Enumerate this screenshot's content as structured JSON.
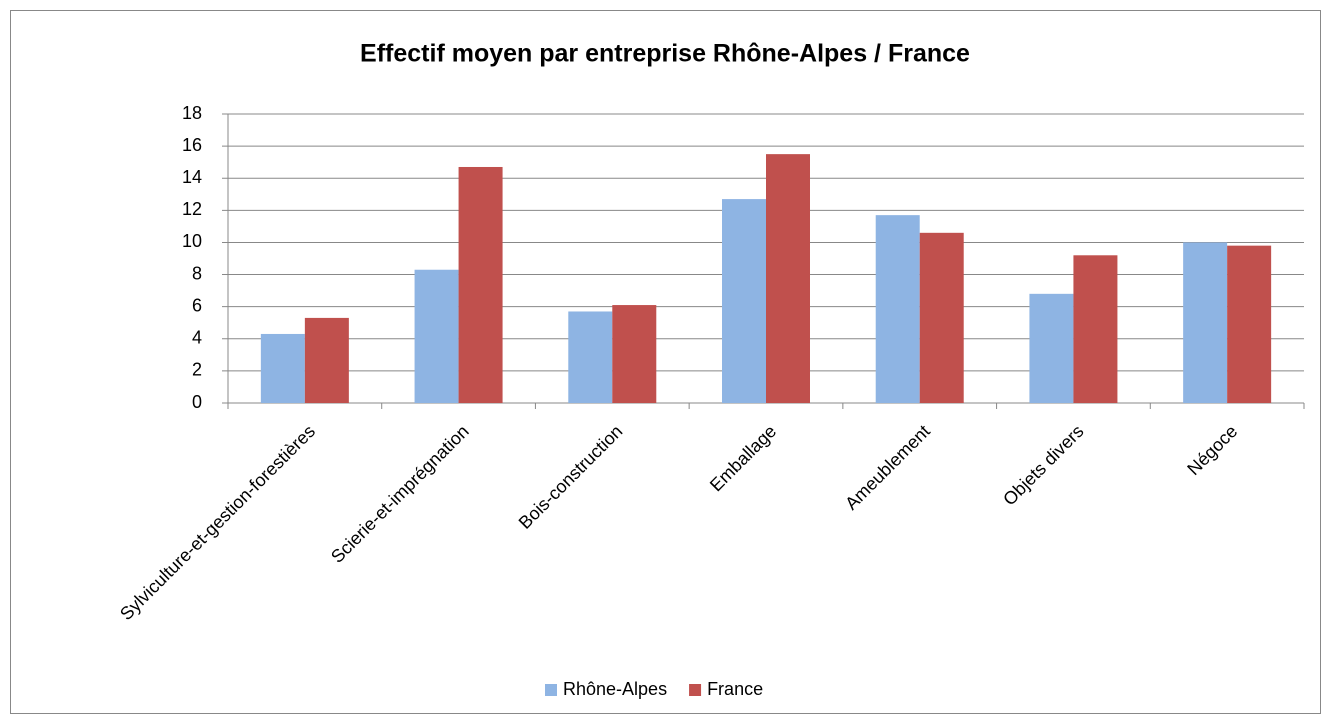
{
  "chart_data": {
    "type": "bar",
    "title": "Effectif moyen par entreprise Rhône-Alpes / France",
    "categories": [
      "Sylviculture-et-gestion-forestières",
      "Scierie-et-imprégnation",
      "Bois-construction",
      "Emballage",
      "Ameublement",
      "Objets divers",
      "Négoce"
    ],
    "series": [
      {
        "name": "Rhône-Alpes",
        "color": "#8eb4e3",
        "values": [
          4.3,
          8.3,
          5.7,
          12.7,
          11.7,
          6.8,
          10.0
        ]
      },
      {
        "name": "France",
        "color": "#c0504d",
        "values": [
          5.3,
          14.7,
          6.1,
          15.5,
          10.6,
          9.2,
          9.8
        ]
      }
    ],
    "ylim": [
      0,
      18
    ],
    "yticks": [
      0,
      2,
      4,
      6,
      8,
      10,
      12,
      14,
      16,
      18
    ],
    "grid": true,
    "legend": "bottom"
  }
}
